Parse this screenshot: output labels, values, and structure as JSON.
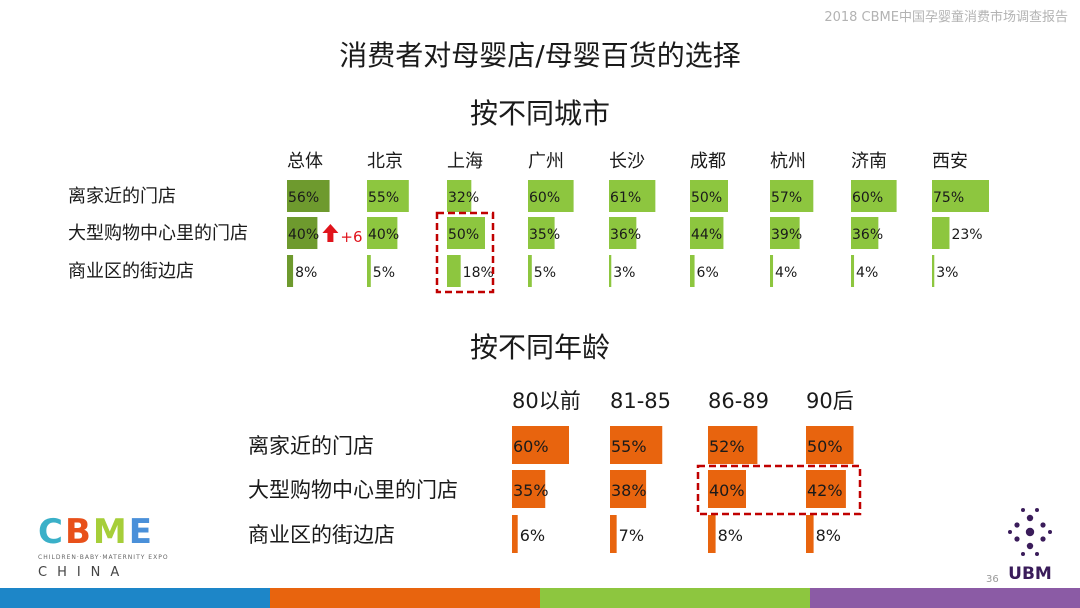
{
  "report_title": "2018 CBME中国孕婴童消费市场调查报告",
  "title": "消费者对母婴店/母婴百货的选择",
  "page_number": "36",
  "colors": {
    "green_light": "#8DC63F",
    "green_dark": "#6E9A2E",
    "orange": "#E8640E",
    "highlight_border": "#C00000",
    "arrow_red": "#E0141C"
  },
  "chart_data": [
    {
      "type": "bar",
      "orientation": "horizontal-small-multiples",
      "title": "按不同城市",
      "categories": [
        "总体",
        "北京",
        "上海",
        "广州",
        "长沙",
        "成都",
        "杭州",
        "济南",
        "西安"
      ],
      "series": [
        {
          "name": "离家近的门店",
          "values": [
            56,
            55,
            32,
            60,
            61,
            50,
            57,
            60,
            75
          ],
          "labels": [
            "56%",
            "55%",
            "32%",
            "60%",
            "61%",
            "50%",
            "57%",
            "60%",
            "75%"
          ]
        },
        {
          "name": "大型购物中心里的门店",
          "values": [
            40,
            40,
            50,
            35,
            36,
            44,
            39,
            36,
            23
          ],
          "labels": [
            "40%",
            "40%",
            "50%",
            "35%",
            "36%",
            "44%",
            "39%",
            "36%",
            "23%"
          ]
        },
        {
          "name": "商业区的街边店",
          "values": [
            8,
            5,
            18,
            5,
            3,
            6,
            4,
            4,
            3
          ],
          "labels": [
            "8%",
            "5%",
            "18%",
            "5%",
            "3%",
            "6%",
            "4%",
            "4%",
            "3%"
          ]
        }
      ],
      "annotation": {
        "text": "+6",
        "category": "总体",
        "series": "大型购物中心里的门店"
      },
      "highlight": {
        "category": "上海",
        "series": [
          "大型购物中心里的门店",
          "商业区的街边店"
        ]
      },
      "dark_category": "总体"
    },
    {
      "type": "bar",
      "orientation": "horizontal-small-multiples",
      "title": "按不同年龄",
      "categories": [
        "80以前",
        "81-85",
        "86-89",
        "90后"
      ],
      "series": [
        {
          "name": "离家近的门店",
          "values": [
            60,
            55,
            52,
            50
          ],
          "labels": [
            "60%",
            "55%",
            "52%",
            "50%"
          ]
        },
        {
          "name": "大型购物中心里的门店",
          "values": [
            35,
            38,
            40,
            42
          ],
          "labels": [
            "35%",
            "38%",
            "40%",
            "42%"
          ]
        },
        {
          "name": "商业区的街边店",
          "values": [
            6,
            7,
            8,
            8
          ],
          "labels": [
            "6%",
            "7%",
            "8%",
            "8%"
          ]
        }
      ],
      "highlight": {
        "categories": [
          "86-89",
          "90后"
        ],
        "series": "大型购物中心里的门店"
      }
    }
  ],
  "logo_cbme": {
    "letters": "CBME",
    "tagline": "CHILDREN·BABY·MATERNITY EXPO",
    "sub": "CHINA",
    "colors": [
      "#3AB0C8",
      "#E8501A",
      "#A6CE39",
      "#4A90D9"
    ]
  },
  "logo_ubm": {
    "text": "UBM",
    "color": "#3A1C5A"
  },
  "bottom_bar_colors": [
    "#1D86C8",
    "#E8640E",
    "#8DC63F",
    "#8B5BA5"
  ]
}
